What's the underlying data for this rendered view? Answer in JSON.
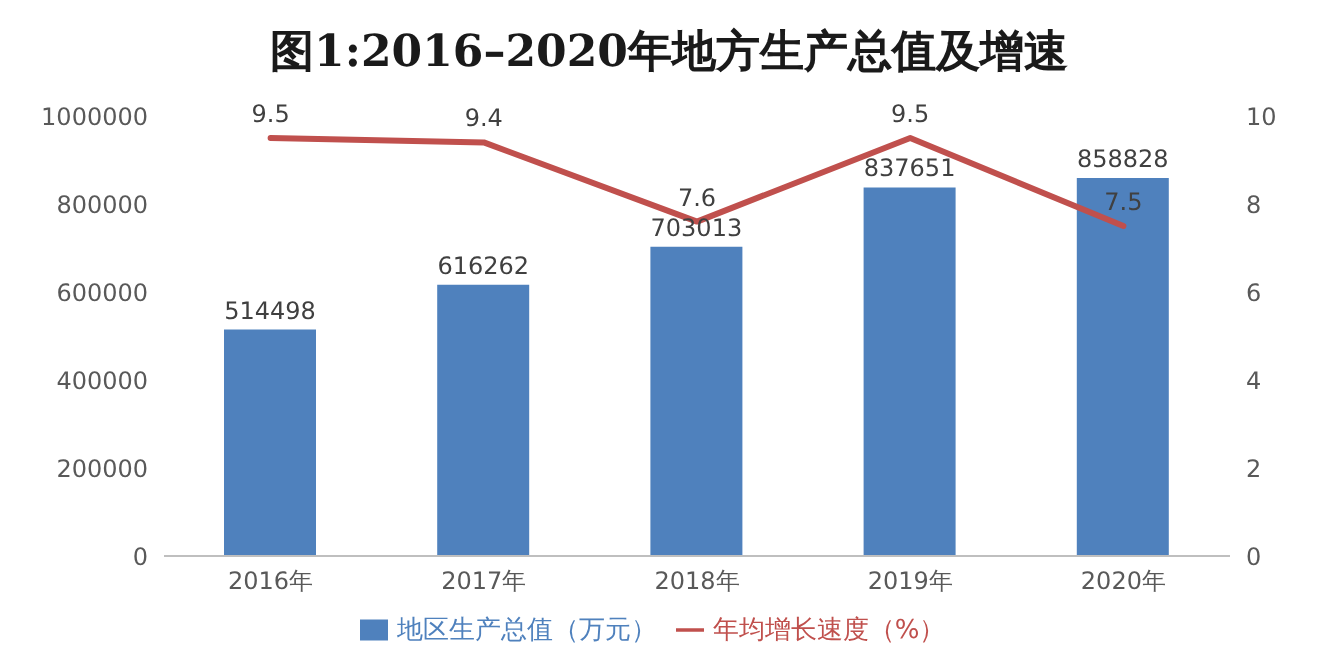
{
  "chart_data": {
    "type": "bar",
    "title": "图1:2016–2020年地方生产总值及增速",
    "categories": [
      "2016年",
      "2017年",
      "2018年",
      "2019年",
      "2020年"
    ],
    "series": [
      {
        "name": "地区生产总值（万元）",
        "color": "#4f81bd",
        "values": [
          514498,
          616262,
          703013,
          837651,
          858828
        ]
      },
      {
        "name": "年均增长速度（%）",
        "type": "line",
        "axis": "y2",
        "color": "#c0504d",
        "values": [
          9.5,
          9.4,
          7.6,
          9.5,
          7.5
        ]
      }
    ],
    "ylim": [
      0,
      1000000
    ],
    "yticks": [
      0,
      200000,
      400000,
      600000,
      800000,
      1000000
    ],
    "y2lim": [
      0,
      10
    ],
    "y2ticks": [
      0,
      2,
      4,
      6,
      8,
      10
    ],
    "data_labels": true,
    "grid": false,
    "legend": "bottom",
    "marker": "none",
    "line_style": "solid"
  }
}
